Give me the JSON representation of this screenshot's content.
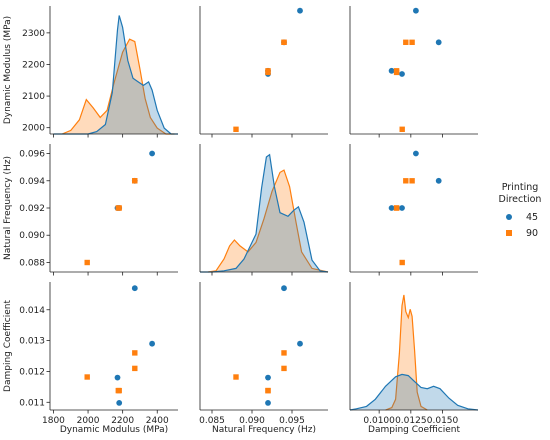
{
  "chart_data": {
    "type": "scatter",
    "variables": [
      "Dynamic Modulus (MPa)",
      "Natural Frequency (Hz)",
      "Damping Coefficient"
    ],
    "axis_labels": {
      "x": [
        "Dynamic Modulus (MPa)",
        "Natural Frequency (Hz)",
        "Damping Coefficient"
      ],
      "y": [
        "Dynamic Modulus (MPa)",
        "Natural Frequency (Hz)",
        "Damping Coefficient"
      ]
    },
    "ranges": [
      [
        1780,
        2520
      ],
      [
        0.0835,
        0.0995
      ],
      [
        0.0077,
        0.0178
      ]
    ],
    "ticks": [
      {
        "values": [
          1800,
          2000,
          2200,
          2400
        ],
        "labels": [
          "1800",
          "2000",
          "2200",
          "2400"
        ]
      },
      {
        "values": [
          0.085,
          0.09,
          0.095
        ],
        "labels": [
          "0.085",
          "0.090",
          "0.095"
        ]
      },
      {
        "values": [
          0.01,
          0.0125,
          0.015
        ],
        "labels": [
          "0.0100",
          "0.0125",
          "0.0150"
        ]
      }
    ],
    "diag_y_ticks": {
      "values": [
        2000,
        2100,
        2200,
        2300
      ],
      "labels": [
        "2000",
        "2100",
        "2200",
        "2300"
      ],
      "range": [
        1980,
        2385
      ]
    },
    "row_y_ticks": [
      {
        "values": [
          2000,
          2100,
          2200,
          2300
        ],
        "labels": [
          "2000",
          "2100",
          "2200",
          "2300"
        ],
        "range": [
          1980,
          2385
        ]
      },
      {
        "values": [
          0.088,
          0.09,
          0.092,
          0.094,
          0.096
        ],
        "labels": [
          "0.088",
          "0.090",
          "0.092",
          "0.094",
          "0.096"
        ],
        "range": [
          0.0873,
          0.0967
        ]
      },
      {
        "values": [
          0.011,
          0.012,
          0.013,
          0.014
        ],
        "labels": [
          "0.011",
          "0.012",
          "0.013",
          "0.014"
        ],
        "range": [
          0.01075,
          0.0149
        ]
      }
    ],
    "legend": {
      "title": "Printing\nDirection",
      "position": "right",
      "entries": [
        "45",
        "90"
      ]
    },
    "series": [
      {
        "name": "45",
        "color": "#1f77b4",
        "marker": "circle",
        "points": [
          [
            2170,
            0.092,
            0.0118
          ],
          [
            2180,
            0.092,
            0.01098
          ],
          [
            2270,
            0.094,
            0.0147
          ],
          [
            2370,
            0.096,
            0.0129
          ]
        ]
      },
      {
        "name": "90",
        "color": "#ff7f0e",
        "marker": "square",
        "points": [
          [
            1995,
            0.088,
            0.01182
          ],
          [
            2175,
            0.092,
            0.01138
          ],
          [
            2180,
            0.092,
            0.01138
          ],
          [
            2270,
            0.094,
            0.0126
          ],
          [
            2270,
            0.094,
            0.0121
          ]
        ]
      }
    ],
    "kde_density": [
      {
        "45": [
          [
            1800,
            0
          ],
          [
            1850,
            0
          ],
          [
            1900,
            0
          ],
          [
            1950,
            0
          ],
          [
            2000,
            0
          ],
          [
            2050,
            0.02
          ],
          [
            2100,
            0.08
          ],
          [
            2140,
            0.35
          ],
          [
            2170,
            0.88
          ],
          [
            2180,
            1.0
          ],
          [
            2200,
            0.9
          ],
          [
            2230,
            0.62
          ],
          [
            2260,
            0.47
          ],
          [
            2290,
            0.44
          ],
          [
            2320,
            0.41
          ],
          [
            2350,
            0.44
          ],
          [
            2370,
            0.37
          ],
          [
            2400,
            0.2
          ],
          [
            2440,
            0.05
          ],
          [
            2480,
            0
          ],
          [
            2520,
            0
          ]
        ],
        "90": [
          [
            1850,
            0
          ],
          [
            1900,
            0.03
          ],
          [
            1950,
            0.12
          ],
          [
            1990,
            0.29
          ],
          [
            2030,
            0.22
          ],
          [
            2070,
            0.14
          ],
          [
            2110,
            0.2
          ],
          [
            2150,
            0.43
          ],
          [
            2200,
            0.69
          ],
          [
            2240,
            0.8
          ],
          [
            2270,
            0.78
          ],
          [
            2300,
            0.55
          ],
          [
            2330,
            0.3
          ],
          [
            2360,
            0.14
          ],
          [
            2400,
            0.05
          ],
          [
            2450,
            0
          ],
          [
            2500,
            0
          ]
        ]
      },
      {
        "45": [
          [
            0.0835,
            0
          ],
          [
            0.085,
            0
          ],
          [
            0.0865,
            0.01
          ],
          [
            0.088,
            0.03
          ],
          [
            0.089,
            0.11
          ],
          [
            0.0905,
            0.32
          ],
          [
            0.0912,
            0.71
          ],
          [
            0.0918,
            0.97
          ],
          [
            0.0922,
            0.99
          ],
          [
            0.0928,
            0.72
          ],
          [
            0.0935,
            0.5
          ],
          [
            0.0945,
            0.47
          ],
          [
            0.0952,
            0.52
          ],
          [
            0.0958,
            0.55
          ],
          [
            0.0965,
            0.42
          ],
          [
            0.0975,
            0.1
          ],
          [
            0.0985,
            0.01
          ],
          [
            0.0995,
            0
          ]
        ],
        "90": [
          [
            0.0845,
            0
          ],
          [
            0.0855,
            0.01
          ],
          [
            0.0865,
            0.11
          ],
          [
            0.0872,
            0.22
          ],
          [
            0.0878,
            0.27
          ],
          [
            0.0885,
            0.22
          ],
          [
            0.0895,
            0.17
          ],
          [
            0.0905,
            0.25
          ],
          [
            0.0915,
            0.45
          ],
          [
            0.0925,
            0.68
          ],
          [
            0.0935,
            0.84
          ],
          [
            0.094,
            0.86
          ],
          [
            0.0947,
            0.72
          ],
          [
            0.0955,
            0.42
          ],
          [
            0.0962,
            0.17
          ],
          [
            0.0975,
            0.03
          ],
          [
            0.0995,
            0
          ]
        ]
      },
      {
        "45": [
          [
            0.0077,
            0
          ],
          [
            0.0082,
            0.01
          ],
          [
            0.009,
            0.03
          ],
          [
            0.0097,
            0.09
          ],
          [
            0.0105,
            0.2
          ],
          [
            0.0113,
            0.28
          ],
          [
            0.0118,
            0.3
          ],
          [
            0.0123,
            0.29
          ],
          [
            0.0128,
            0.24
          ],
          [
            0.0133,
            0.19
          ],
          [
            0.0138,
            0.18
          ],
          [
            0.0143,
            0.2
          ],
          [
            0.0148,
            0.18
          ],
          [
            0.0155,
            0.1
          ],
          [
            0.0162,
            0.04
          ],
          [
            0.017,
            0.01
          ],
          [
            0.0178,
            0
          ]
        ],
        "90": [
          [
            0.0105,
            0
          ],
          [
            0.011,
            0.02
          ],
          [
            0.0113,
            0.09
          ],
          [
            0.0116,
            0.48
          ],
          [
            0.0118,
            0.88
          ],
          [
            0.01195,
            0.97
          ],
          [
            0.0121,
            0.83
          ],
          [
            0.0123,
            0.78
          ],
          [
            0.01245,
            0.85
          ],
          [
            0.0126,
            0.79
          ],
          [
            0.0128,
            0.5
          ],
          [
            0.013,
            0.15
          ],
          [
            0.0133,
            0.03
          ],
          [
            0.0138,
            0
          ]
        ]
      }
    ]
  }
}
